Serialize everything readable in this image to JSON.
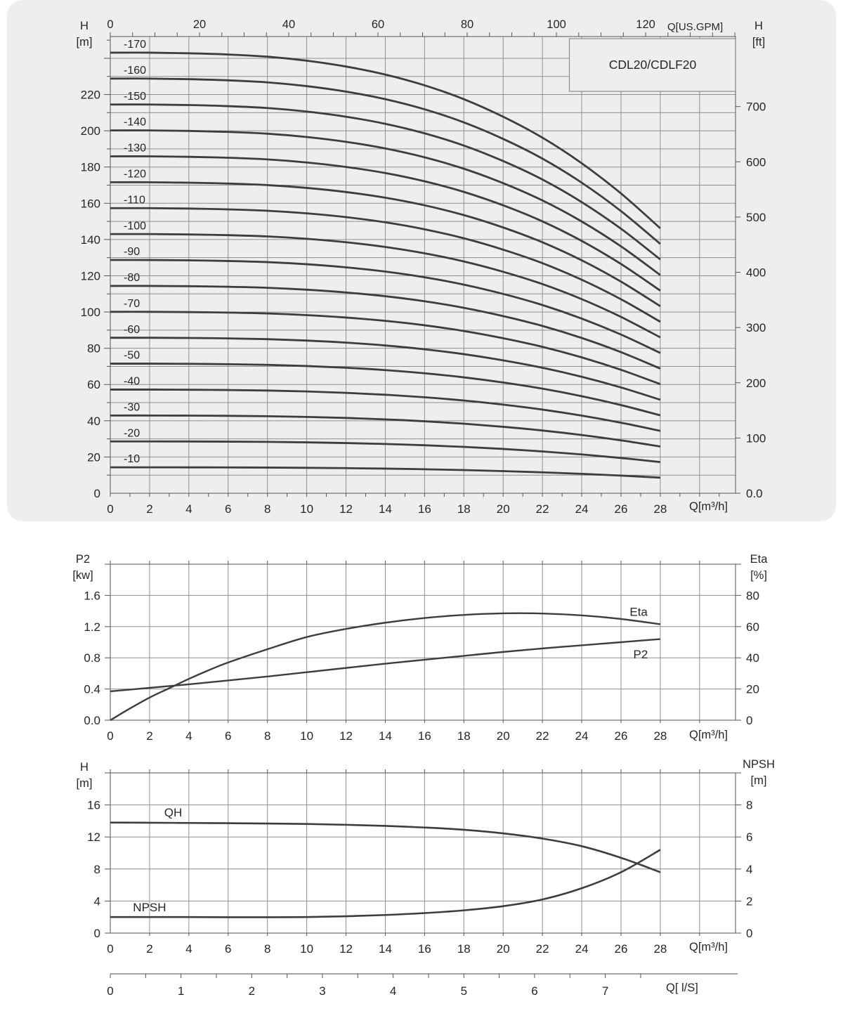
{
  "page": {
    "background": "#ffffff",
    "card_background": "#eeeeef"
  },
  "colors": {
    "grid": "#8f8f8f",
    "axis": "#6e6e6e",
    "tick": "#555555",
    "curve": "#3d3d3d",
    "text": "#262626",
    "box_border": "#8a8a8a"
  },
  "chart_data": [
    {
      "type": "line",
      "title": "CDL20/CDLF20",
      "x_bottom": {
        "label": "Q[m³/h]",
        "ticks": [
          0,
          2,
          4,
          6,
          8,
          10,
          12,
          14,
          16,
          18,
          20,
          22,
          24,
          26,
          28
        ],
        "minor_step": 1,
        "range": [
          0,
          31.83
        ]
      },
      "x_top": {
        "label": "Q[US.GPM]",
        "ticks": [
          0,
          20,
          40,
          60,
          80,
          100,
          120
        ],
        "minor_step": 5,
        "gpm_per_m3h": 4.4029,
        "range": [
          0,
          140
        ]
      },
      "y_left": {
        "label_lines": [
          "H",
          "[m]"
        ],
        "ticks": [
          0,
          20,
          40,
          60,
          80,
          100,
          120,
          140,
          160,
          180,
          200,
          220
        ],
        "minor_step": 10,
        "range": [
          0,
          252
        ],
        "grid_step": 10,
        "grid_max": 240
      },
      "y_right": {
        "label_lines": [
          "H",
          "[ft]"
        ],
        "tick_labels": [
          "0.0",
          "100",
          "200",
          "300",
          "400",
          "500",
          "600",
          "700"
        ],
        "tick_values": [
          0,
          100,
          200,
          300,
          400,
          500,
          600,
          700
        ],
        "m_per_ft": 0.3048
      },
      "per_stage_head": {
        "Q": [
          0,
          2,
          4,
          6,
          8,
          10,
          12,
          14,
          16,
          18,
          20,
          22,
          24,
          26,
          28
        ],
        "H": [
          14.3,
          14.3,
          14.28,
          14.24,
          14.17,
          14.04,
          13.85,
          13.59,
          13.24,
          12.79,
          12.22,
          11.54,
          10.71,
          9.73,
          8.6
        ]
      },
      "stage_curves": [
        {
          "label": "-10",
          "stages": 1
        },
        {
          "label": "-20",
          "stages": 2
        },
        {
          "label": "-30",
          "stages": 3
        },
        {
          "label": "-40",
          "stages": 4
        },
        {
          "label": "-50",
          "stages": 5
        },
        {
          "label": "-60",
          "stages": 6
        },
        {
          "label": "-70",
          "stages": 7
        },
        {
          "label": "-80",
          "stages": 8
        },
        {
          "label": "-90",
          "stages": 9
        },
        {
          "label": "-100",
          "stages": 10
        },
        {
          "label": "-110",
          "stages": 11
        },
        {
          "label": "-120",
          "stages": 12
        },
        {
          "label": "-130",
          "stages": 13
        },
        {
          "label": "-140",
          "stages": 14
        },
        {
          "label": "-150",
          "stages": 15
        },
        {
          "label": "-160",
          "stages": 16
        },
        {
          "label": "-170",
          "stages": 17
        }
      ]
    },
    {
      "type": "line",
      "x_bottom": {
        "label": "Q[m³/h]",
        "ticks": [
          0,
          2,
          4,
          6,
          8,
          10,
          12,
          14,
          16,
          18,
          20,
          22,
          24,
          26,
          28
        ],
        "range": [
          0,
          31.83
        ]
      },
      "y_left": {
        "label_lines": [
          "P2",
          "[kw]"
        ],
        "tick_labels": [
          "0.0",
          "0.4",
          "0.8",
          "1.2",
          "1.6"
        ],
        "tick_values": [
          0,
          0.4,
          0.8,
          1.2,
          1.6
        ],
        "range": [
          0,
          2.0
        ],
        "grid_step": 0.4
      },
      "y_right": {
        "label_lines": [
          "Eta",
          "[%]"
        ],
        "tick_labels": [
          "0",
          "20",
          "40",
          "60",
          "80"
        ],
        "tick_values": [
          0,
          20,
          40,
          60,
          80
        ],
        "range": [
          0,
          100
        ]
      },
      "series": [
        {
          "name": "P2",
          "label": "P2",
          "axis": "left",
          "label_at": {
            "q": 27.0,
            "v": 0.845
          },
          "Q": [
            0,
            2,
            4,
            6,
            8,
            10,
            12,
            14,
            16,
            18,
            20,
            22,
            24,
            26,
            28
          ],
          "V": [
            0.37,
            0.415,
            0.46,
            0.51,
            0.56,
            0.615,
            0.67,
            0.725,
            0.775,
            0.825,
            0.875,
            0.92,
            0.96,
            1.0,
            1.04
          ]
        },
        {
          "name": "Eta",
          "label": "Eta",
          "axis": "right",
          "label_at": {
            "q": 26.9,
            "v": 69.5
          },
          "Q": [
            0,
            1,
            2,
            3,
            4,
            5,
            6,
            8,
            10,
            12,
            14,
            16,
            18,
            20,
            22,
            24,
            26,
            28
          ],
          "V": [
            0,
            7.5,
            14.5,
            20.5,
            26.5,
            32,
            37,
            45.5,
            53.3,
            58.5,
            62.5,
            65.5,
            67.5,
            68.5,
            68.4,
            67.2,
            64.9,
            61.5
          ]
        }
      ]
    },
    {
      "type": "line",
      "x_bottom": {
        "label": "Q[m³/h]",
        "ticks": [
          0,
          2,
          4,
          6,
          8,
          10,
          12,
          14,
          16,
          18,
          20,
          22,
          24,
          26,
          28
        ],
        "range": [
          0,
          31.83
        ]
      },
      "x_ls": {
        "label": "Q[ l/S]",
        "ticks": [
          0,
          1,
          2,
          3,
          4,
          5,
          6,
          7
        ],
        "minor_step": 0.5,
        "m3h_per_ls": 3.6
      },
      "y_left": {
        "label_lines": [
          "H",
          "[m]"
        ],
        "tick_labels": [
          "0",
          "4",
          "8",
          "12",
          "16"
        ],
        "tick_values": [
          0,
          4,
          8,
          12,
          16
        ],
        "range": [
          0,
          20
        ],
        "grid_step": 4
      },
      "y_right": {
        "label_lines": [
          "NPSH",
          "[m]"
        ],
        "tick_labels": [
          "0",
          "2",
          "4",
          "6",
          "8"
        ],
        "tick_values": [
          0,
          2,
          4,
          6,
          8
        ],
        "range": [
          0,
          10
        ]
      },
      "series": [
        {
          "name": "QH",
          "label": "QH",
          "axis": "left",
          "label_at": {
            "q": 3.2,
            "v": 15.1
          },
          "Q": [
            0,
            2,
            4,
            6,
            8,
            10,
            12,
            14,
            16,
            18,
            20,
            22,
            24,
            26,
            28
          ],
          "V": [
            13.8,
            13.78,
            13.75,
            13.72,
            13.68,
            13.62,
            13.52,
            13.38,
            13.18,
            12.9,
            12.45,
            11.8,
            10.85,
            9.4,
            7.6
          ]
        },
        {
          "name": "NPSH",
          "label": "NPSH",
          "axis": "right",
          "label_at": {
            "q": 2.0,
            "v": 1.62
          },
          "Q": [
            0,
            2,
            4,
            6,
            8,
            10,
            12,
            14,
            16,
            18,
            20,
            22,
            24,
            26,
            28
          ],
          "V": [
            1.0,
            1.0,
            1.0,
            0.99,
            0.99,
            1.0,
            1.05,
            1.13,
            1.25,
            1.42,
            1.68,
            2.1,
            2.8,
            3.8,
            5.2
          ]
        }
      ]
    }
  ]
}
